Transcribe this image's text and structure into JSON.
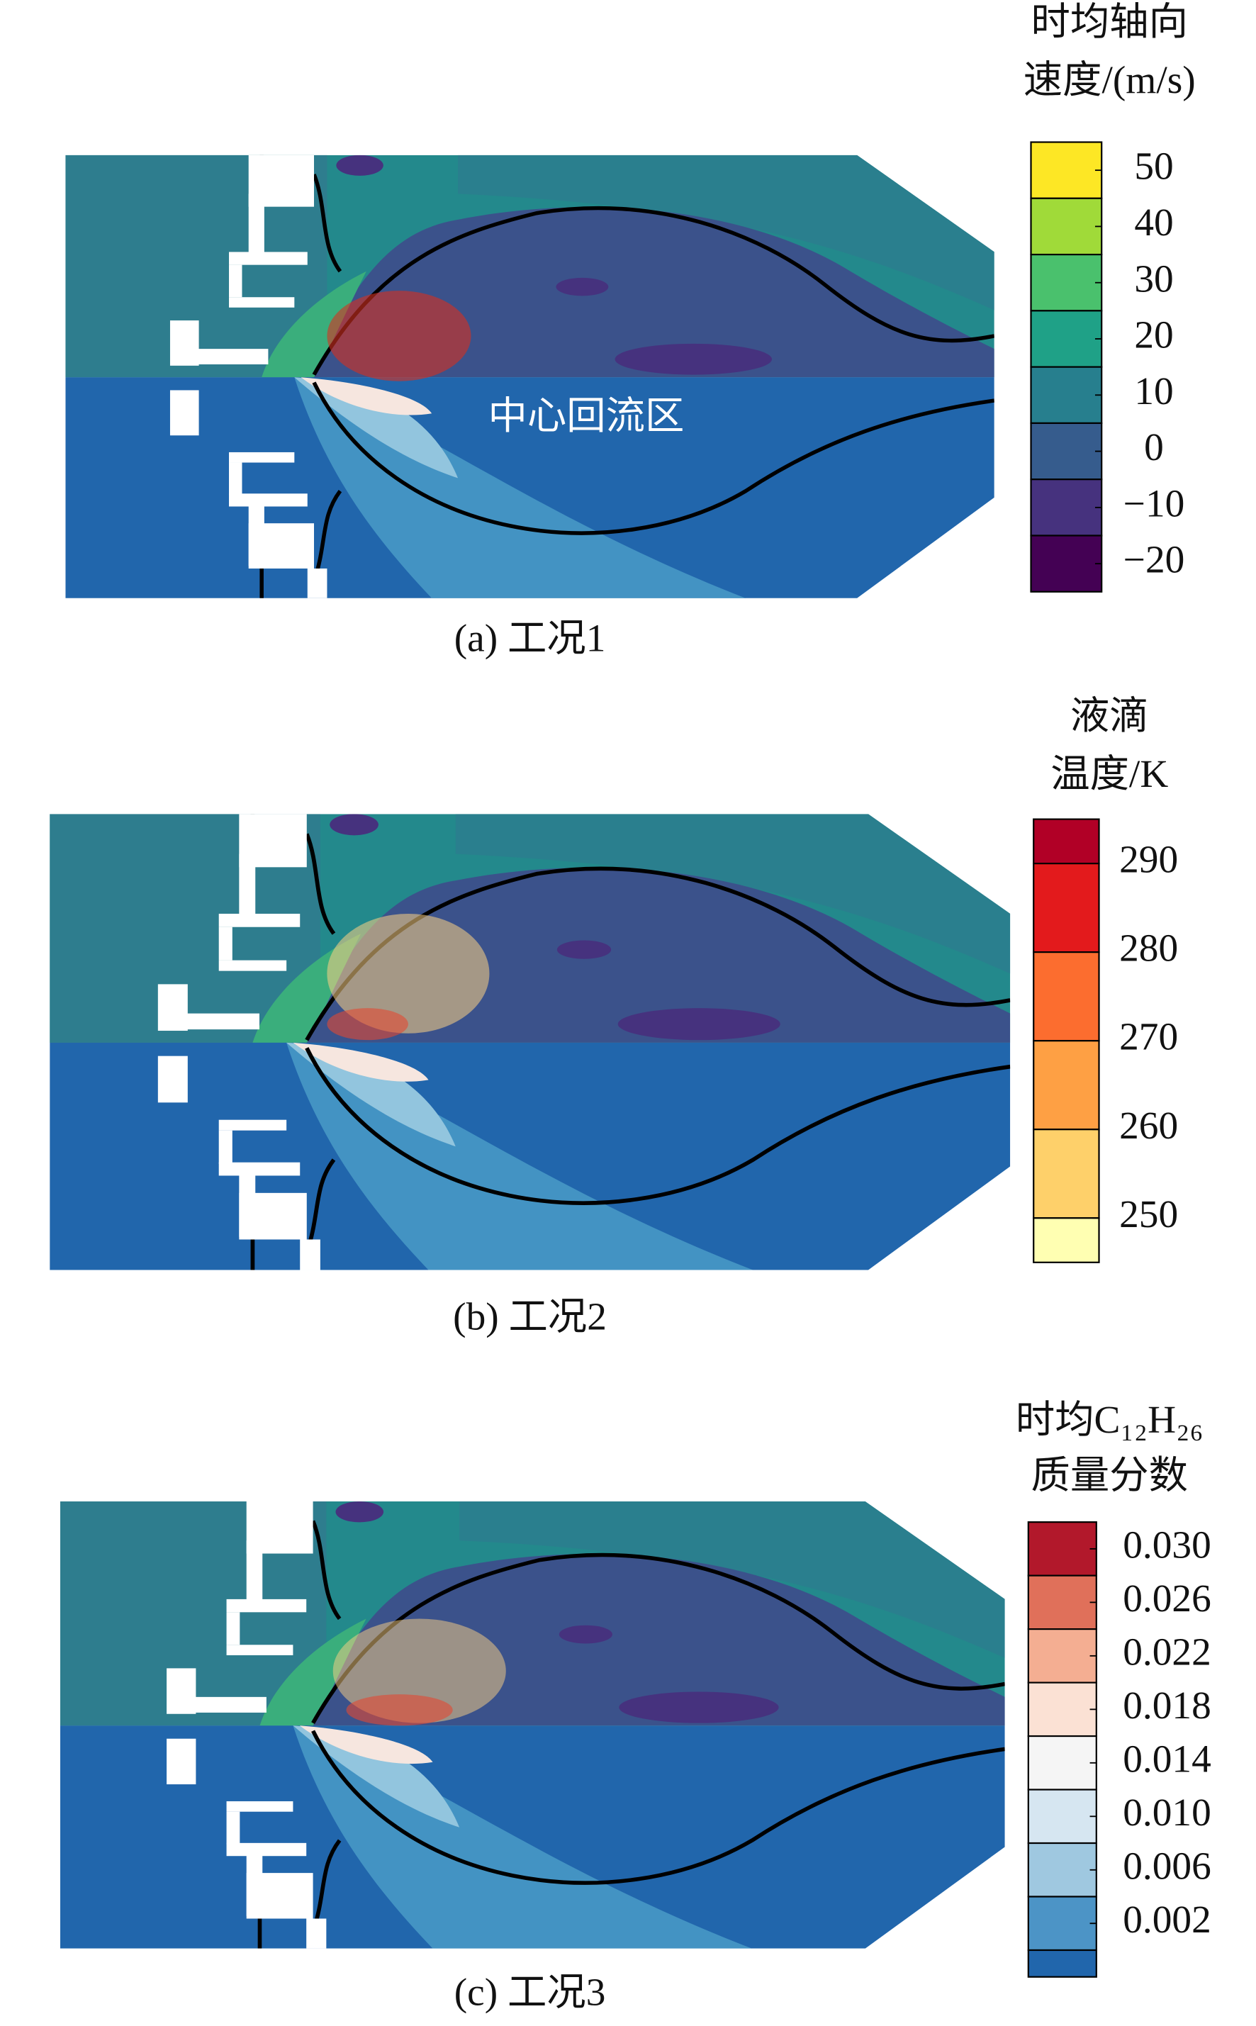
{
  "chart_data": [
    {
      "type": "contour",
      "caption": "(a) 工况1",
      "colorbar_title": [
        "时均轴向",
        "速度/(m/s)"
      ],
      "annotation": "中心回流区",
      "levels": [
        55,
        45,
        35,
        25,
        15,
        5,
        -5,
        -15,
        -25
      ],
      "colors": [
        "#fde725",
        "#a0da39",
        "#4ac16d",
        "#1fa187",
        "#277f8e",
        "#365c8d",
        "#46327e",
        "#440154"
      ],
      "cticks": [
        50,
        40,
        30,
        20,
        10,
        0,
        {
          "value": -10,
          "label": "−10"
        },
        {
          "value": -20,
          "label": "−20"
        }
      ]
    },
    {
      "type": "contour",
      "caption": "(b) 工况2",
      "colorbar_title": [
        "液滴",
        "温度/K"
      ],
      "levels": [
        295,
        290,
        280,
        270,
        260,
        250,
        245
      ],
      "colors": [
        "#b10026",
        "#e31a1c",
        "#fc6d2f",
        "#fea044",
        "#fed06a",
        "#ffffb2"
      ],
      "cticks": [
        290,
        280,
        270,
        260,
        250
      ]
    },
    {
      "type": "contour",
      "caption": "(c) 工况3",
      "colorbar_title": [
        "时均C₁₂H₂₆",
        "质量分数"
      ],
      "levels": [
        0.032,
        0.028,
        0.024,
        0.02,
        0.016,
        0.012,
        0.008,
        0.004,
        0,
        -0.002
      ],
      "colors": [
        "#b2182b",
        "#e0705a",
        "#f4ae92",
        "#fbe1d4",
        "#f5f5f5",
        "#d6e6f1",
        "#9fc8e0",
        "#4c94c6",
        "#2166ac"
      ],
      "cticks": [
        {
          "value": 0.03,
          "label": "0.030"
        },
        0.026,
        0.022,
        0.018,
        0.014,
        {
          "value": 0.01,
          "label": "0.010"
        },
        0.006,
        0.002
      ]
    }
  ]
}
